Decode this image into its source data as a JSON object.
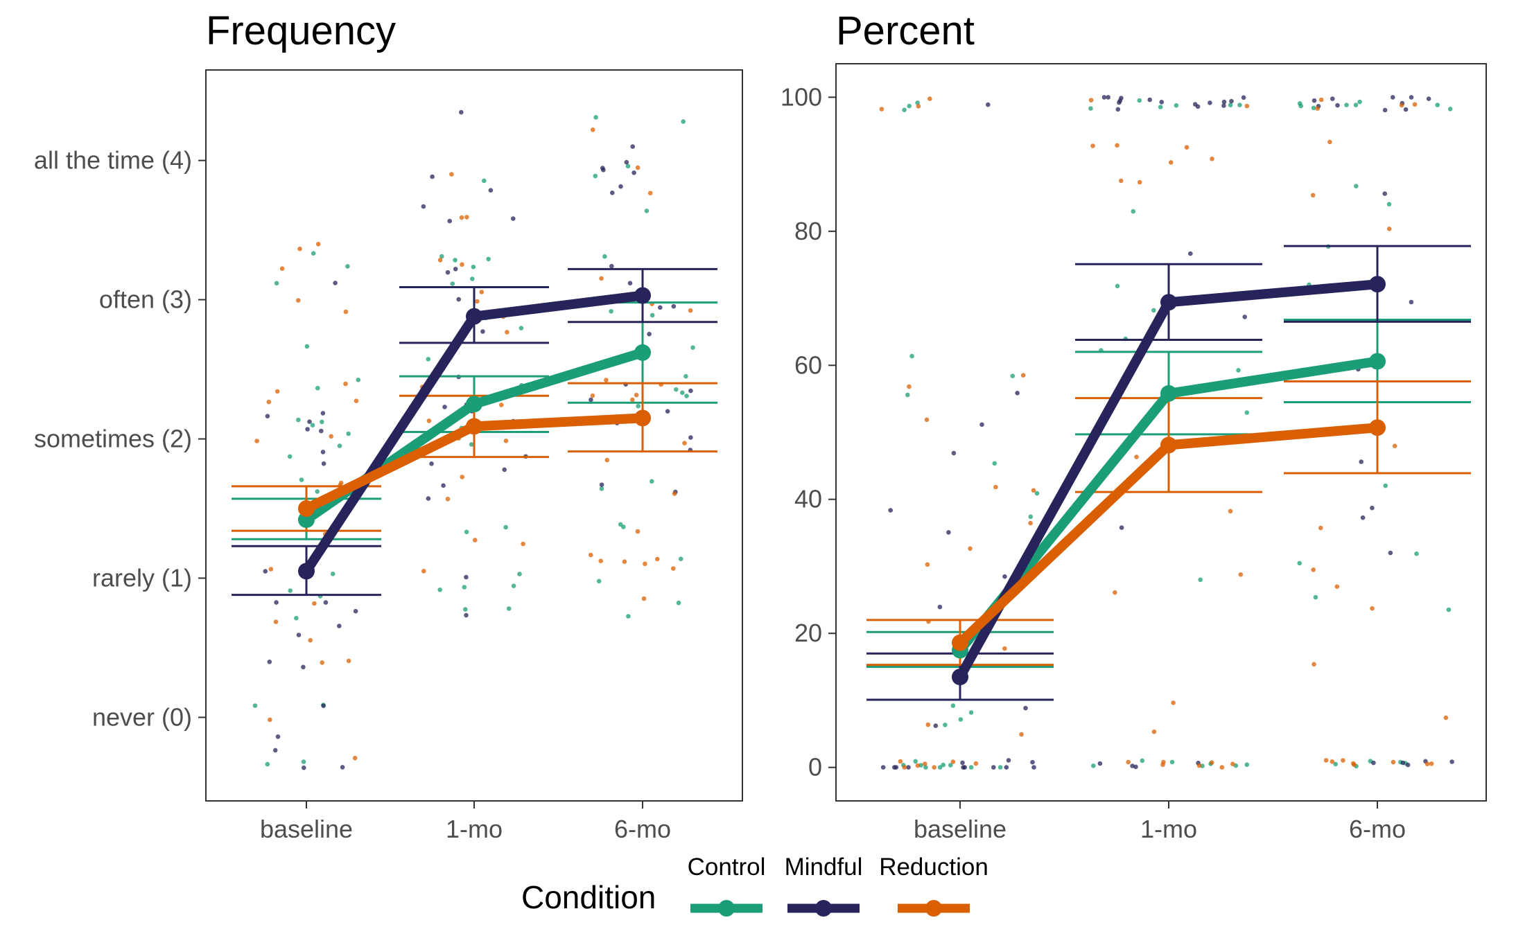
{
  "chart_data": [
    {
      "type": "line",
      "title": "Frequency",
      "xlabel": "",
      "ylabel": "",
      "categories": [
        "baseline",
        "1-mo",
        "6-mo"
      ],
      "yticks": [
        0,
        1,
        2,
        3,
        4
      ],
      "ytick_labels": [
        "never (0)",
        "rarely (1)",
        "sometimes (2)",
        "often (3)",
        "all the time (4)"
      ],
      "ylim": [
        -0.6,
        4.65
      ],
      "grid": false,
      "series": [
        {
          "name": "Control",
          "color": "#1b9e77",
          "values": [
            1.42,
            2.25,
            2.62
          ],
          "lower": [
            1.28,
            2.05,
            2.26
          ],
          "upper": [
            1.57,
            2.45,
            2.98
          ]
        },
        {
          "name": "Mindful",
          "color": "#26245a",
          "values": [
            1.05,
            2.88,
            3.03
          ],
          "lower": [
            0.88,
            2.69,
            2.84
          ],
          "upper": [
            1.23,
            3.09,
            3.22
          ]
        },
        {
          "name": "Reduction",
          "color": "#d95f02",
          "values": [
            1.5,
            2.09,
            2.15
          ],
          "lower": [
            1.34,
            1.87,
            1.91
          ],
          "upper": [
            1.66,
            2.31,
            2.4
          ]
        }
      ]
    },
    {
      "type": "line",
      "title": "Percent",
      "xlabel": "",
      "ylabel": "",
      "categories": [
        "baseline",
        "1-mo",
        "6-mo"
      ],
      "yticks": [
        0,
        20,
        40,
        60,
        80,
        100
      ],
      "ytick_labels": [
        "0",
        "20",
        "40",
        "60",
        "80",
        "100"
      ],
      "ylim": [
        -5,
        105
      ],
      "grid": false,
      "series": [
        {
          "name": "Control",
          "color": "#1b9e77",
          "values": [
            17.5,
            55.8,
            60.6
          ],
          "lower": [
            15.0,
            49.7,
            54.5
          ],
          "upper": [
            20.2,
            62.0,
            66.8
          ]
        },
        {
          "name": "Mindful",
          "color": "#26245a",
          "values": [
            13.5,
            69.4,
            72.1
          ],
          "lower": [
            10.1,
            63.8,
            66.5
          ],
          "upper": [
            17.0,
            75.1,
            77.8
          ]
        },
        {
          "name": "Reduction",
          "color": "#d95f02",
          "values": [
            18.6,
            48.1,
            50.7
          ],
          "lower": [
            15.3,
            41.1,
            43.9
          ],
          "upper": [
            22.0,
            55.1,
            57.6
          ]
        }
      ]
    }
  ],
  "legend": {
    "title": "Condition",
    "position": "bottom",
    "items": [
      "Control",
      "Mindful",
      "Reduction"
    ]
  }
}
